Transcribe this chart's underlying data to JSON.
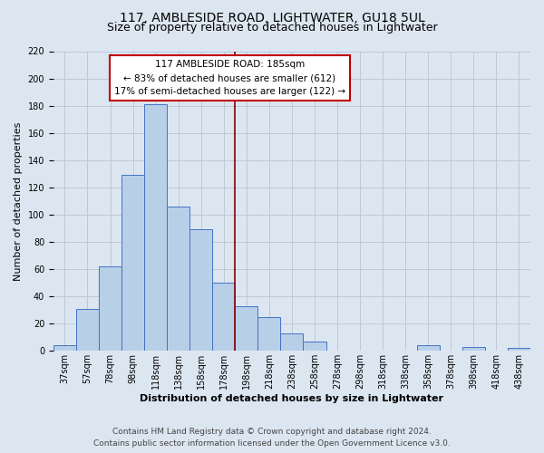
{
  "title": "117, AMBLESIDE ROAD, LIGHTWATER, GU18 5UL",
  "subtitle": "Size of property relative to detached houses in Lightwater",
  "xlabel": "Distribution of detached houses by size in Lightwater",
  "ylabel": "Number of detached properties",
  "bar_labels": [
    "37sqm",
    "57sqm",
    "78sqm",
    "98sqm",
    "118sqm",
    "138sqm",
    "158sqm",
    "178sqm",
    "198sqm",
    "218sqm",
    "238sqm",
    "258sqm",
    "278sqm",
    "298sqm",
    "318sqm",
    "338sqm",
    "358sqm",
    "378sqm",
    "398sqm",
    "418sqm",
    "438sqm"
  ],
  "bar_values": [
    4,
    31,
    62,
    129,
    181,
    106,
    89,
    50,
    33,
    25,
    13,
    7,
    0,
    0,
    0,
    0,
    4,
    0,
    3,
    0,
    2
  ],
  "bar_color": "#b8cfe8",
  "bar_edge_color": "#4472c4",
  "background_color": "#dce6f1",
  "plot_bg_color": "#dce6f1",
  "vline_color": "#8b0000",
  "annotation_title": "117 AMBLESIDE ROAD: 185sqm",
  "annotation_line1": "← 83% of detached houses are smaller (612)",
  "annotation_line2": "17% of semi-detached houses are larger (122) →",
  "annotation_box_color": "#ffffff",
  "annotation_border_color": "#c00000",
  "ylim": [
    0,
    220
  ],
  "yticks": [
    0,
    20,
    40,
    60,
    80,
    100,
    120,
    140,
    160,
    180,
    200,
    220
  ],
  "footer_line1": "Contains HM Land Registry data © Crown copyright and database right 2024.",
  "footer_line2": "Contains public sector information licensed under the Open Government Licence v3.0.",
  "grid_color": "#c0c8d8",
  "title_fontsize": 10,
  "subtitle_fontsize": 9,
  "axis_label_fontsize": 8,
  "tick_fontsize": 7,
  "annotation_fontsize": 7.5,
  "footer_fontsize": 6.5
}
